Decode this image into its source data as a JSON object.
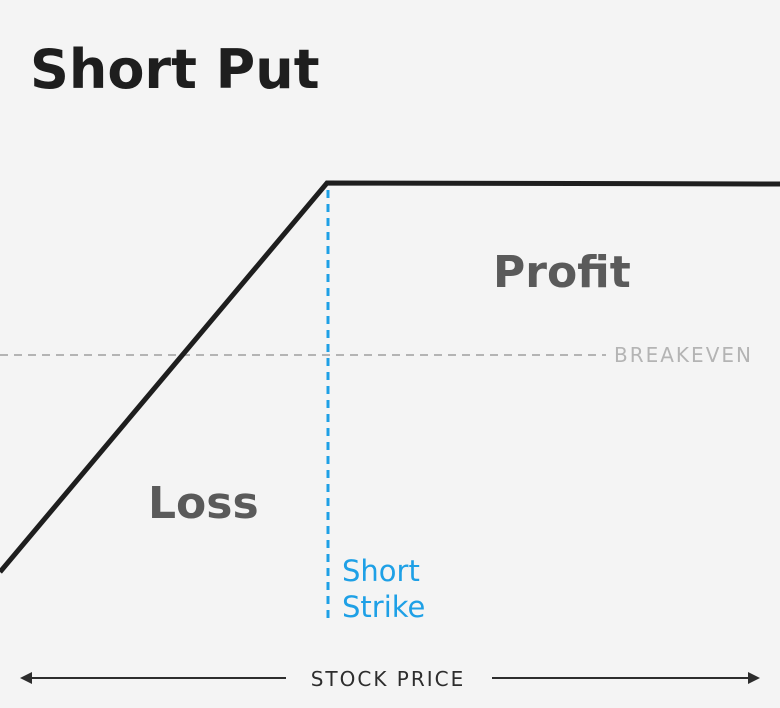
{
  "title": "Short Put",
  "labels": {
    "profit": "Profit",
    "loss": "Loss",
    "breakeven": "BREAKEVEN",
    "strike_line1": "Short",
    "strike_line2": "Strike",
    "x_axis": "STOCK PRICE"
  },
  "colors": {
    "background": "#f4f4f4",
    "payoff_line": "#1e1e1e",
    "strike": "#1ea0e6",
    "breakeven": "#b4b4b4",
    "region_text": "#5a5a5a",
    "axis": "#2d2d2d"
  }
}
